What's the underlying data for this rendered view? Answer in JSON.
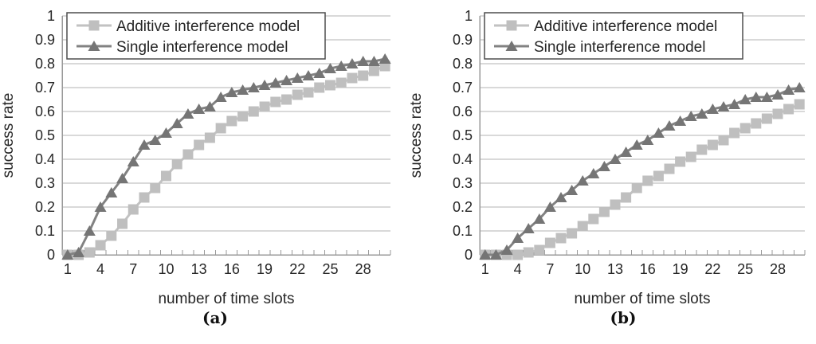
{
  "page": {
    "background": "#ffffff"
  },
  "style": {
    "additive_color_line": "#c2c2c2",
    "additive_color_marker": "#bfbfbf",
    "single_color_line": "#828282",
    "single_color_marker": "#757575",
    "gridline_color": "#b3b3b3",
    "axis_color": "#999999",
    "text_color": "#262626",
    "legend_border_color": "#4d4d4d"
  },
  "chart_data": [
    {
      "type": "line",
      "caption": "(a)",
      "title": "",
      "xlabel": "number of time slots",
      "ylabel": "success rate",
      "ylim": [
        0,
        1
      ],
      "x_range": [
        1,
        30
      ],
      "grid": "horizontal",
      "legend_position": "top-left-inside",
      "x": [
        1,
        2,
        3,
        4,
        5,
        6,
        7,
        8,
        9,
        10,
        11,
        12,
        13,
        14,
        15,
        16,
        17,
        18,
        19,
        20,
        21,
        22,
        23,
        24,
        25,
        26,
        27,
        28,
        29,
        30
      ],
      "x_ticks": [
        1,
        4,
        7,
        10,
        13,
        16,
        19,
        22,
        25,
        28
      ],
      "y_ticks": [
        {
          "v": 0,
          "label": "0"
        },
        {
          "v": 0.1,
          "label": "0.1"
        },
        {
          "v": 0.2,
          "label": "0.2"
        },
        {
          "v": 0.3,
          "label": "0.3"
        },
        {
          "v": 0.4,
          "label": "0.4"
        },
        {
          "v": 0.5,
          "label": "0.5"
        },
        {
          "v": 0.6,
          "label": "0.6"
        },
        {
          "v": 0.7,
          "label": "0.7"
        },
        {
          "v": 0.8,
          "label": "0.8"
        },
        {
          "v": 0.9,
          "label": "0.9"
        },
        {
          "v": 1,
          "label": "1"
        }
      ],
      "series": [
        {
          "name": "Additive interference model",
          "marker": "square",
          "color_line": "#c2c2c2",
          "color_marker": "#bfbfbf",
          "values": [
            0.0,
            0.0,
            0.01,
            0.04,
            0.08,
            0.13,
            0.19,
            0.24,
            0.28,
            0.33,
            0.38,
            0.42,
            0.46,
            0.49,
            0.53,
            0.56,
            0.58,
            0.6,
            0.62,
            0.64,
            0.65,
            0.67,
            0.68,
            0.7,
            0.71,
            0.72,
            0.74,
            0.75,
            0.77,
            0.79
          ]
        },
        {
          "name": "Single interference model",
          "marker": "triangle",
          "color_line": "#828282",
          "color_marker": "#757575",
          "values": [
            0.0,
            0.01,
            0.1,
            0.2,
            0.26,
            0.32,
            0.39,
            0.46,
            0.48,
            0.51,
            0.55,
            0.59,
            0.61,
            0.62,
            0.66,
            0.68,
            0.69,
            0.7,
            0.71,
            0.72,
            0.73,
            0.74,
            0.75,
            0.76,
            0.78,
            0.79,
            0.8,
            0.81,
            0.81,
            0.82
          ]
        }
      ]
    },
    {
      "type": "line",
      "caption": "(b)",
      "title": "",
      "xlabel": "number of time slots",
      "ylabel": "success rate",
      "ylim": [
        0,
        1
      ],
      "x_range": [
        1,
        30
      ],
      "grid": "horizontal",
      "legend_position": "top-left-inside",
      "x": [
        1,
        2,
        3,
        4,
        5,
        6,
        7,
        8,
        9,
        10,
        11,
        12,
        13,
        14,
        15,
        16,
        17,
        18,
        19,
        20,
        21,
        22,
        23,
        24,
        25,
        26,
        27,
        28,
        29,
        30
      ],
      "x_ticks": [
        1,
        4,
        7,
        10,
        13,
        16,
        19,
        22,
        25,
        28
      ],
      "y_ticks": [
        {
          "v": 0,
          "label": "0"
        },
        {
          "v": 0.1,
          "label": "0.1"
        },
        {
          "v": 0.2,
          "label": "0.2"
        },
        {
          "v": 0.3,
          "label": "0.3"
        },
        {
          "v": 0.4,
          "label": "0.4"
        },
        {
          "v": 0.5,
          "label": "0.5"
        },
        {
          "v": 0.6,
          "label": "0.6"
        },
        {
          "v": 0.7,
          "label": "0.7"
        },
        {
          "v": 0.8,
          "label": "0.8"
        },
        {
          "v": 0.9,
          "label": "0.9"
        },
        {
          "v": 1,
          "label": "1"
        }
      ],
      "series": [
        {
          "name": "Additive interference model",
          "marker": "square",
          "color_line": "#c2c2c2",
          "color_marker": "#bfbfbf",
          "values": [
            0.0,
            0.0,
            0.0,
            0.0,
            0.01,
            0.02,
            0.05,
            0.07,
            0.09,
            0.12,
            0.15,
            0.18,
            0.21,
            0.24,
            0.28,
            0.31,
            0.33,
            0.36,
            0.39,
            0.41,
            0.44,
            0.46,
            0.48,
            0.51,
            0.53,
            0.55,
            0.57,
            0.59,
            0.61,
            0.63
          ]
        },
        {
          "name": "Single interference model",
          "marker": "triangle",
          "color_line": "#828282",
          "color_marker": "#757575",
          "values": [
            0.0,
            0.0,
            0.02,
            0.07,
            0.11,
            0.15,
            0.2,
            0.24,
            0.27,
            0.31,
            0.34,
            0.37,
            0.4,
            0.43,
            0.46,
            0.48,
            0.51,
            0.54,
            0.56,
            0.58,
            0.59,
            0.61,
            0.62,
            0.63,
            0.65,
            0.66,
            0.66,
            0.67,
            0.69,
            0.7
          ]
        }
      ]
    }
  ]
}
